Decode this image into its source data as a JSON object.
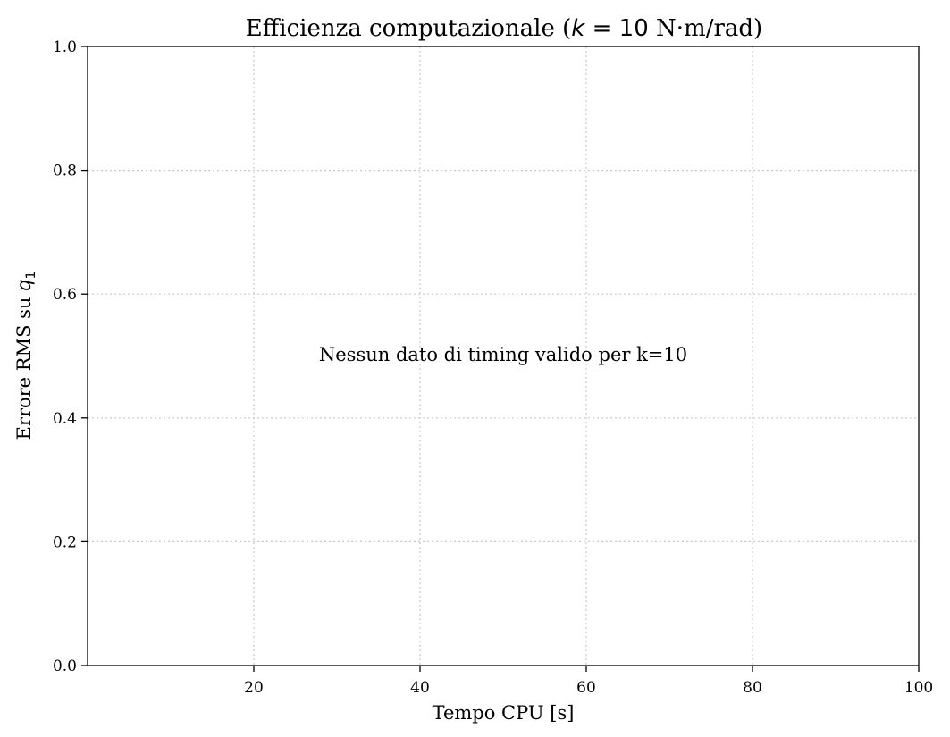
{
  "chart_data": {
    "type": "scatter",
    "title": "Efficienza computazionale (k = 10 N·m/rad)",
    "title_parts": {
      "prefix": "Efficienza computazionale (",
      "symbol": "k",
      "equals": " = ",
      "value": "10",
      "suffix": " N·m/rad)"
    },
    "xlabel": "Tempo CPU [s]",
    "ylabel": "Errore RMS su q₁",
    "ylabel_parts": {
      "text": "Errore RMS su ",
      "symbol": "q",
      "subscript": "1"
    },
    "xlim": [
      0,
      100
    ],
    "ylim": [
      0,
      1
    ],
    "xticks": [
      20,
      40,
      60,
      80,
      100
    ],
    "xtick_labels": [
      "20",
      "40",
      "60",
      "80",
      "100"
    ],
    "yticks": [
      0,
      0.2,
      0.4,
      0.6,
      0.8,
      1.0
    ],
    "ytick_labels": [
      "0.0",
      "0.2",
      "0.4",
      "0.6",
      "0.8",
      "1.0"
    ],
    "grid": true,
    "grid_style": "dotted",
    "series": [],
    "annotation": "Nessun dato di timing valido per k=10",
    "colors": {
      "axis": "#000000",
      "grid": "#c8c8c8",
      "background": "#ffffff"
    }
  }
}
